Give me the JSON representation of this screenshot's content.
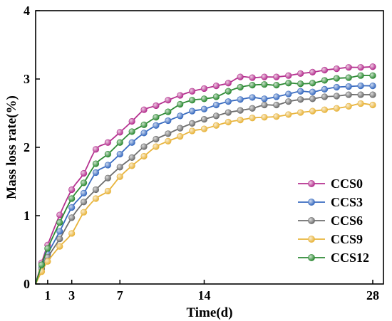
{
  "chart_data": {
    "type": "line",
    "title": "",
    "xlabel": "Time(d)",
    "ylabel": "Mass loss rate(%)",
    "xlim": [
      0,
      28
    ],
    "ylim": [
      0,
      4
    ],
    "xticks": [
      1,
      3,
      7,
      14,
      28
    ],
    "yticks": [
      0,
      1,
      2,
      3,
      4
    ],
    "grid": false,
    "legend_position": "bottom-right",
    "x": [
      0,
      0.5,
      1,
      2,
      3,
      4,
      5,
      6,
      7,
      8,
      9,
      10,
      11,
      12,
      13,
      14,
      15,
      16,
      17,
      18,
      19,
      20,
      21,
      22,
      23,
      24,
      25,
      26,
      27,
      28
    ],
    "series": [
      {
        "name": "CCS0",
        "color": "#b5318f",
        "values": [
          0,
          0.31,
          0.57,
          1.01,
          1.38,
          1.62,
          1.97,
          2.07,
          2.22,
          2.38,
          2.55,
          2.61,
          2.69,
          2.76,
          2.82,
          2.86,
          2.9,
          2.94,
          3.03,
          3.02,
          3.03,
          3.03,
          3.05,
          3.08,
          3.1,
          3.13,
          3.15,
          3.17,
          3.17,
          3.18
        ]
      },
      {
        "name": "CCS3",
        "color": "#3a6cc0",
        "values": [
          0,
          0.24,
          0.44,
          0.77,
          1.12,
          1.33,
          1.63,
          1.74,
          1.9,
          2.07,
          2.21,
          2.32,
          2.39,
          2.46,
          2.53,
          2.56,
          2.62,
          2.67,
          2.7,
          2.73,
          2.71,
          2.74,
          2.78,
          2.82,
          2.81,
          2.85,
          2.88,
          2.89,
          2.9,
          2.9
        ]
      },
      {
        "name": "CCS6",
        "color": "#6e6e6e",
        "values": [
          0,
          0.22,
          0.39,
          0.66,
          0.97,
          1.2,
          1.38,
          1.55,
          1.71,
          1.85,
          2.01,
          2.12,
          2.2,
          2.28,
          2.35,
          2.41,
          2.46,
          2.51,
          2.54,
          2.57,
          2.62,
          2.62,
          2.67,
          2.7,
          2.71,
          2.74,
          2.75,
          2.77,
          2.77,
          2.77
        ]
      },
      {
        "name": "CCS9",
        "color": "#e8b43c",
        "values": [
          0,
          0.18,
          0.33,
          0.55,
          0.74,
          1.05,
          1.25,
          1.36,
          1.57,
          1.73,
          1.87,
          2.01,
          2.09,
          2.16,
          2.24,
          2.27,
          2.32,
          2.37,
          2.4,
          2.43,
          2.44,
          2.45,
          2.48,
          2.51,
          2.53,
          2.55,
          2.57,
          2.6,
          2.64,
          2.62
        ]
      },
      {
        "name": "CCS12",
        "color": "#2d8a34",
        "values": [
          0,
          0.28,
          0.52,
          0.9,
          1.25,
          1.48,
          1.76,
          1.9,
          2.07,
          2.23,
          2.33,
          2.44,
          2.52,
          2.63,
          2.69,
          2.71,
          2.74,
          2.82,
          2.88,
          2.91,
          2.92,
          2.91,
          2.94,
          2.93,
          2.94,
          2.98,
          3.01,
          3.02,
          3.05,
          3.05
        ]
      }
    ]
  }
}
